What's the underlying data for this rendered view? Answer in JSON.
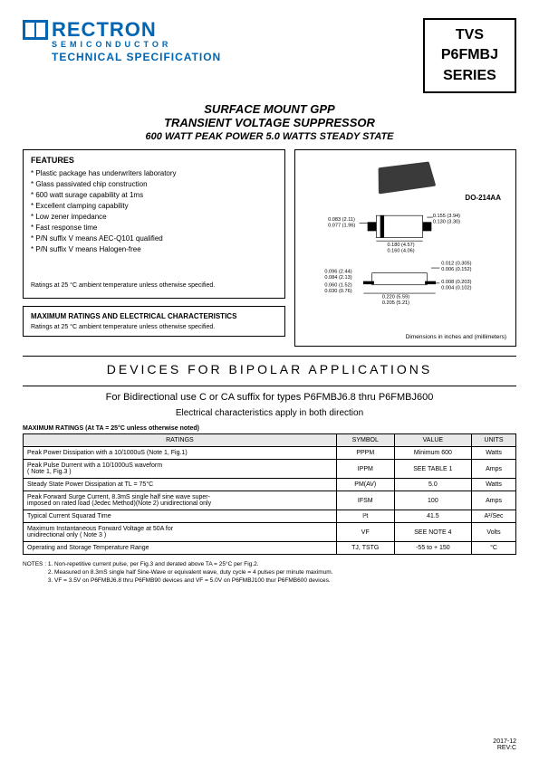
{
  "logo": {
    "name": "RECTRON",
    "sub": "SEMICONDUCTOR",
    "tagline": "TECHNICAL SPECIFICATION"
  },
  "series_box": {
    "l1": "TVS",
    "l2": "P6FMBJ",
    "l3": "SERIES"
  },
  "titles": {
    "t1": "SURFACE MOUNT GPP",
    "t2": "TRANSIENT VOLTAGE SUPPRESSOR",
    "t3": "600 WATT PEAK POWER  5.0 WATTS STEADY STATE"
  },
  "features": {
    "title": "FEATURES",
    "items": [
      "Plastic package has underwriters laboratory",
      "Glass passivated chip construction",
      "600 watt surage capability at 1ms",
      "Excellent clamping capability",
      "Low zener impedance",
      "Fast response time",
      "P/N suffix V means AEC-Q101 qualified",
      "P/N suffix V means Halogen-free"
    ],
    "note": "Ratings at 25 °C ambient temperature unless otherwise specified."
  },
  "max_box": {
    "title": "MAXIMUM RATINGS AND ELECTRICAL CHARACTERISTICS",
    "note": "Ratings at 25 °C ambient temperature unless otherwise specified."
  },
  "package": {
    "label": "DO-214AA",
    "dim_note": "Dimensions in inches and (millimeters)",
    "dims": {
      "d1a": "0.083 (2.11)",
      "d1b": "0.077 (1.96)",
      "d2a": "0.155 (3.94)",
      "d2b": "0.130 (3.30)",
      "d3a": "0.180 (4.57)",
      "d3b": "0.160 (4.06)",
      "d4a": "0.096 (2.44)",
      "d4b": "0.084 (2.13)",
      "d5a": "0.060 (1.52)",
      "d5b": "0.030 (0.76)",
      "d6a": "0.012 (0.305)",
      "d6b": "0.006 (0.152)",
      "d7a": "0.008 (0.203)",
      "d7b": "0.004 (0.102)",
      "d8a": "0.220 (5.59)",
      "d8b": "0.205 (5.21)"
    }
  },
  "bipolar": {
    "heading": "DEVICES   FOR   BIPOLAR   APPLICATIONS",
    "sub1": "For Bidirectional use C or CA suffix for types P6FMBJ6.8 thru P6FMBJ600",
    "sub2": "Electrical characteristics apply in both direction"
  },
  "ratings_table": {
    "title": "MAXIMUM RATINGS (At TA = 25°C unless otherwise noted)",
    "headers": [
      "RATINGS",
      "SYMBOL",
      "VALUE",
      "UNITS"
    ],
    "rows": [
      [
        "Peak Power Dissipation with a 10/1000uS (Note 1, Fig.1)",
        "PPPM",
        "Minimum 600",
        "Watts"
      ],
      [
        "Peak Pulse Durrent with a 10/1000uS waveform\n( Note 1, Fig.3 )",
        "IPPM",
        "SEE TABLE 1",
        "Amps"
      ],
      [
        "Steady State Power Dissipation at TL = 75°C",
        "PM(AV)",
        "5.0",
        "Watts"
      ],
      [
        "Peak Forward Surge Current, 8.3mS single half sine wave super-\nimposed on rated load (Jedec Method)(Note 2) unidirectional only",
        "IFSM",
        "100",
        "Amps"
      ],
      [
        "Typical Current Squarad Time",
        "I²t",
        "41.5",
        "A²/Sec"
      ],
      [
        "Maximum Instantaneous Forward Voltage at 50A for\nunidirectional only ( Note 3 )",
        "VF",
        "SEE NOTE 4",
        "Volts"
      ],
      [
        "Operating and Storage Temperature Range",
        "TJ, TSTG",
        "-55 to + 150",
        "°C"
      ]
    ]
  },
  "notes": {
    "label": "NOTES :",
    "lines": [
      "1. Non-repetitive current pulse, per Fig.3 and derated above TA = 25°C per Fig.2.",
      "2. Measured on 8.3mS single half Sine-Wave or equivalent wave, duty cycle = 4 pulses per minute maximum.",
      "3. VF = 3.5V on P6FMBJ6.8 thru P6FMB90 devices and VF = 5.0V on P6FMBJ100 thur P6FMB600 devices."
    ]
  },
  "footer": {
    "date": "2017-12",
    "rev": "REV:C"
  },
  "colors": {
    "brand": "#0066b3",
    "border": "#000000",
    "th_bg": "#e8e8e8"
  }
}
